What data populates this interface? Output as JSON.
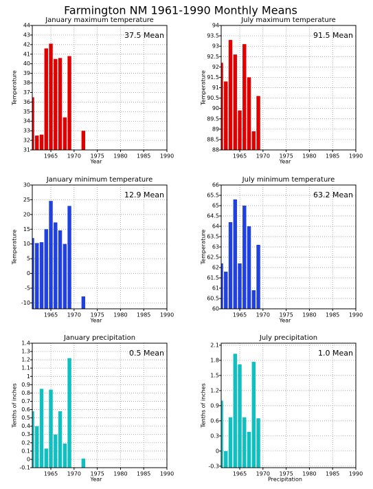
{
  "title": "Farmington NM  1961-1990 Monthly Means",
  "chart_data": [
    {
      "type": "bar",
      "title": "January maximum temperature",
      "annotation": "37.5 Mean",
      "xlabel": "Year",
      "ylabel": "Temperature",
      "color": "#e00000",
      "x": [
        1961,
        1962,
        1963,
        1964,
        1965,
        1966,
        1967,
        1968,
        1969,
        1970,
        1971,
        1972
      ],
      "values": [
        36.5,
        32.5,
        32.6,
        41.6,
        42.1,
        40.5,
        40.6,
        34.4,
        40.8,
        null,
        null,
        33.0
      ],
      "xlim": [
        1961,
        1990
      ],
      "xticks": [
        1965,
        1970,
        1975,
        1980,
        1985,
        1990
      ],
      "ylim": [
        31,
        44
      ],
      "yticks": [
        31,
        32,
        33,
        34,
        35,
        36,
        37,
        38,
        39,
        40,
        41,
        42,
        43,
        44
      ],
      "grid": true
    },
    {
      "type": "bar",
      "title": "July maximum temperature",
      "annotation": "91.5 Mean",
      "xlabel": "Year",
      "ylabel": "Temperature",
      "color": "#e00000",
      "x": [
        1961,
        1962,
        1963,
        1964,
        1965,
        1966,
        1967,
        1968,
        1969
      ],
      "values": [
        92.2,
        91.3,
        93.3,
        92.6,
        89.9,
        93.1,
        91.5,
        88.9,
        90.6
      ],
      "xlim": [
        1961,
        1990
      ],
      "xticks": [
        1965,
        1970,
        1975,
        1980,
        1985,
        1990
      ],
      "ylim": [
        88,
        94
      ],
      "yticks": [
        88,
        88.5,
        89,
        89.5,
        90,
        90.5,
        91,
        91.5,
        92,
        92.5,
        93,
        93.5,
        94
      ],
      "grid": true
    },
    {
      "type": "bar",
      "title": "January minimum temperature",
      "annotation": "12.9 Mean",
      "xlabel": "Year",
      "ylabel": "Temperature",
      "color": "#2040e0",
      "x": [
        1961,
        1962,
        1963,
        1964,
        1965,
        1966,
        1967,
        1968,
        1969,
        1970,
        1971,
        1972
      ],
      "values": [
        12,
        10.3,
        10.6,
        15,
        24.6,
        17.3,
        14.6,
        10,
        22.9,
        null,
        null,
        -7.8
      ],
      "xlim": [
        1961,
        1990
      ],
      "xticks": [
        1965,
        1970,
        1975,
        1980,
        1985,
        1990
      ],
      "ylim": [
        -12,
        30
      ],
      "yticks": [
        -10,
        -5,
        0,
        5,
        10,
        15,
        20,
        25,
        30
      ],
      "grid": true
    },
    {
      "type": "bar",
      "title": "July minimum temperature",
      "annotation": "63.2 Mean",
      "xlabel": "Year",
      "ylabel": "Temperature",
      "color": "#2040e0",
      "x": [
        1961,
        1962,
        1963,
        1964,
        1965,
        1966,
        1967,
        1968,
        1969
      ],
      "values": [
        62.2,
        61.8,
        64.2,
        65.3,
        62.2,
        65.0,
        64.0,
        60.9,
        63.1
      ],
      "xlim": [
        1961,
        1990
      ],
      "xticks": [
        1965,
        1970,
        1975,
        1980,
        1985,
        1990
      ],
      "ylim": [
        60,
        66
      ],
      "yticks": [
        60,
        60.5,
        61,
        61.5,
        62,
        62.5,
        63,
        63.5,
        64,
        64.5,
        65,
        65.5,
        66
      ],
      "grid": true
    },
    {
      "type": "bar",
      "title": "January precipitation",
      "annotation": "0.5 Mean",
      "xlabel": "Year",
      "ylabel": "Tenths of inches",
      "color": "#10c0c0",
      "x": [
        1961,
        1962,
        1963,
        1964,
        1965,
        1966,
        1967,
        1968,
        1969,
        1970,
        1971,
        1972
      ],
      "values": [
        0.58,
        0.4,
        0.85,
        0.13,
        0.84,
        0.3,
        0.58,
        0.19,
        1.22,
        null,
        null,
        0.01
      ],
      "xlim": [
        1961,
        1990
      ],
      "xticks": [
        1965,
        1970,
        1975,
        1980,
        1985,
        1990
      ],
      "ylim": [
        -0.1,
        1.4
      ],
      "yticks": [
        -0.1,
        0,
        0.1,
        0.2,
        0.3,
        0.4,
        0.5,
        0.6,
        0.7,
        0.8,
        0.9,
        1,
        1.1,
        1.2,
        1.3,
        1.4
      ],
      "grid": true
    },
    {
      "type": "bar",
      "title": "July precipitation",
      "annotation": "1.0 Mean",
      "xlabel": "Precipitation",
      "ylabel": "Tenths of inches",
      "color": "#10c0c0",
      "x": [
        1961,
        1962,
        1963,
        1964,
        1965,
        1966,
        1967,
        1968,
        1969
      ],
      "values": [
        1.0,
        0.0,
        0.67,
        1.93,
        1.72,
        0.67,
        0.38,
        1.77,
        0.65
      ],
      "xlim": [
        1961,
        1990
      ],
      "xticks": [
        1965,
        1970,
        1975,
        1980,
        1985,
        1990
      ],
      "ylim": [
        -0.33,
        2.14
      ],
      "yticks": [
        -0.3,
        0,
        0.3,
        0.6,
        0.9,
        1.2,
        1.5,
        1.8,
        2.1
      ],
      "grid": true
    }
  ]
}
